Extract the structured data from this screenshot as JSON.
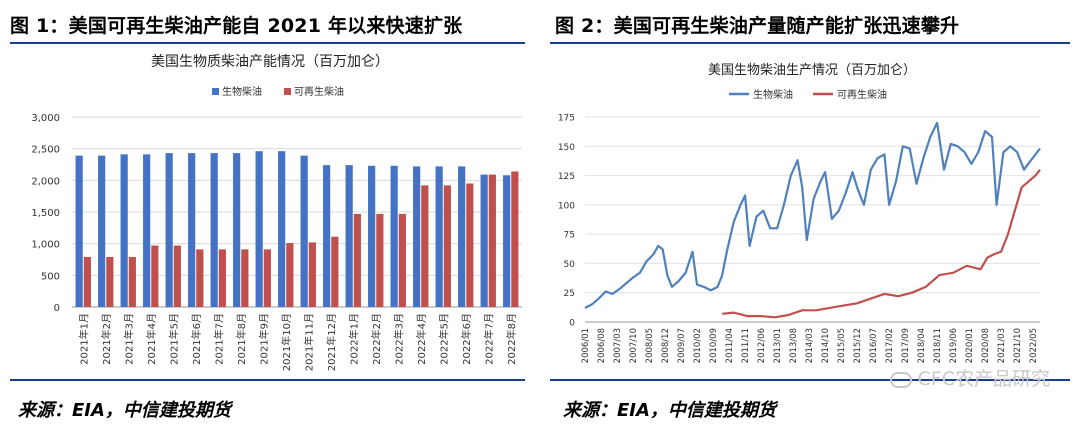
{
  "left": {
    "fig_title": "图 1：美国可再生柴油产能自 2021 年以来快速扩张",
    "source": "来源：EIA，中信建投期货",
    "chart_data": {
      "type": "bar",
      "title": "美国生物质柴油产能情况（百万加仑）",
      "categories": [
        "2021年1月",
        "2021年2月",
        "2021年3月",
        "2021年4月",
        "2021年5月",
        "2021年6月",
        "2021年7月",
        "2021年8月",
        "2021年9月",
        "2021年10月",
        "2021年11月",
        "2021年12月",
        "2022年1月",
        "2022年2月",
        "2022年3月",
        "2022年4月",
        "2022年5月",
        "2022年6月",
        "2022年7月",
        "2022年8月"
      ],
      "series": [
        {
          "name": "生物柴油",
          "color": "#4472c4",
          "values": [
            2390,
            2390,
            2410,
            2410,
            2430,
            2430,
            2430,
            2430,
            2460,
            2460,
            2390,
            2240,
            2240,
            2230,
            2230,
            2220,
            2220,
            2220,
            2090,
            2080
          ]
        },
        {
          "name": "可再生柴油",
          "color": "#c0504d",
          "values": [
            790,
            790,
            790,
            970,
            970,
            910,
            910,
            910,
            910,
            1010,
            1020,
            1110,
            1470,
            1470,
            1470,
            1920,
            1920,
            1950,
            2090,
            2140
          ]
        }
      ],
      "ylim": [
        0,
        3000
      ],
      "yticks": [
        "0",
        "500",
        "1,000",
        "1,500",
        "2,000",
        "2,500",
        "3,000"
      ],
      "ytick_values": [
        0,
        500,
        1000,
        1500,
        2000,
        2500,
        3000
      ],
      "grid": true,
      "legend": "top"
    }
  },
  "right": {
    "fig_title": "图 2：美国可再生柴油产量随产能扩张迅速攀升",
    "source": "来源：EIA，中信建投期货",
    "watermark": "CFC农产品研究",
    "chart_data": {
      "type": "line",
      "title": "美国生物柴油生产情况（百万加仑）",
      "ylim": [
        0,
        175
      ],
      "yticks": [
        "0",
        "25",
        "50",
        "75",
        "100",
        "125",
        "150",
        "175"
      ],
      "ytick_values": [
        0,
        25,
        50,
        75,
        100,
        125,
        150,
        175
      ],
      "xticks": [
        "2006/01",
        "2006/08",
        "2007/03",
        "2007/10",
        "2008/05",
        "2008/12",
        "2009/07",
        "2010/02",
        "2010/09",
        "2011/04",
        "2011/11",
        "2012/06",
        "2013/01",
        "2013/08",
        "2014/03",
        "2014/10",
        "2015/05",
        "2015/12",
        "2016/07",
        "2017/02",
        "2017/09",
        "2018/04",
        "2018/11",
        "2019/06",
        "2020/01",
        "2020/08",
        "2021/03",
        "2021/10",
        "2022/05"
      ],
      "x_start": "2006/01",
      "x_end": "2022/08",
      "grid": true,
      "legend": "top",
      "series": [
        {
          "name": "生物柴油",
          "color": "#4f81bd",
          "points": [
            [
              "2006/01",
              12
            ],
            [
              "2006/04",
              15
            ],
            [
              "2006/07",
              20
            ],
            [
              "2006/10",
              26
            ],
            [
              "2007/01",
              24
            ],
            [
              "2007/04",
              28
            ],
            [
              "2007/07",
              33
            ],
            [
              "2007/10",
              38
            ],
            [
              "2008/01",
              42
            ],
            [
              "2008/04",
              52
            ],
            [
              "2008/07",
              58
            ],
            [
              "2008/09",
              65
            ],
            [
              "2008/11",
              62
            ],
            [
              "2009/01",
              40
            ],
            [
              "2009/03",
              30
            ],
            [
              "2009/06",
              35
            ],
            [
              "2009/09",
              42
            ],
            [
              "2009/12",
              60
            ],
            [
              "2010/02",
              32
            ],
            [
              "2010/05",
              30
            ],
            [
              "2010/08",
              27
            ],
            [
              "2010/11",
              30
            ],
            [
              "2011/01",
              40
            ],
            [
              "2011/03",
              60
            ],
            [
              "2011/06",
              85
            ],
            [
              "2011/09",
              100
            ],
            [
              "2011/11",
              108
            ],
            [
              "2012/01",
              65
            ],
            [
              "2012/04",
              90
            ],
            [
              "2012/07",
              95
            ],
            [
              "2012/10",
              80
            ],
            [
              "2013/01",
              80
            ],
            [
              "2013/04",
              100
            ],
            [
              "2013/07",
              125
            ],
            [
              "2013/10",
              138
            ],
            [
              "2013/12",
              115
            ],
            [
              "2014/02",
              70
            ],
            [
              "2014/05",
              105
            ],
            [
              "2014/08",
              120
            ],
            [
              "2014/10",
              128
            ],
            [
              "2015/01",
              88
            ],
            [
              "2015/04",
              95
            ],
            [
              "2015/07",
              110
            ],
            [
              "2015/10",
              128
            ],
            [
              "2015/12",
              115
            ],
            [
              "2016/03",
              100
            ],
            [
              "2016/06",
              130
            ],
            [
              "2016/09",
              140
            ],
            [
              "2016/12",
              143
            ],
            [
              "2017/02",
              100
            ],
            [
              "2017/05",
              120
            ],
            [
              "2017/08",
              150
            ],
            [
              "2017/11",
              148
            ],
            [
              "2018/02",
              118
            ],
            [
              "2018/05",
              140
            ],
            [
              "2018/08",
              158
            ],
            [
              "2018/11",
              170
            ],
            [
              "2019/02",
              130
            ],
            [
              "2019/05",
              152
            ],
            [
              "2019/08",
              150
            ],
            [
              "2019/11",
              145
            ],
            [
              "2020/02",
              135
            ],
            [
              "2020/05",
              145
            ],
            [
              "2020/08",
              163
            ],
            [
              "2020/11",
              158
            ],
            [
              "2021/01",
              100
            ],
            [
              "2021/04",
              145
            ],
            [
              "2021/07",
              150
            ],
            [
              "2021/10",
              145
            ],
            [
              "2022/01",
              130
            ],
            [
              "2022/04",
              138
            ],
            [
              "2022/08",
              148
            ]
          ]
        },
        {
          "name": "可再生柴油",
          "color": "#c0504d",
          "points": [
            [
              "2011/01",
              7
            ],
            [
              "2011/06",
              8
            ],
            [
              "2011/12",
              5
            ],
            [
              "2012/06",
              5
            ],
            [
              "2012/12",
              4
            ],
            [
              "2013/06",
              6
            ],
            [
              "2013/12",
              10
            ],
            [
              "2014/06",
              10
            ],
            [
              "2014/12",
              12
            ],
            [
              "2015/06",
              14
            ],
            [
              "2015/12",
              16
            ],
            [
              "2016/06",
              20
            ],
            [
              "2016/12",
              24
            ],
            [
              "2017/06",
              22
            ],
            [
              "2017/12",
              25
            ],
            [
              "2018/06",
              30
            ],
            [
              "2018/12",
              40
            ],
            [
              "2019/06",
              42
            ],
            [
              "2019/12",
              48
            ],
            [
              "2020/06",
              45
            ],
            [
              "2020/09",
              55
            ],
            [
              "2020/12",
              58
            ],
            [
              "2021/03",
              60
            ],
            [
              "2021/06",
              75
            ],
            [
              "2021/09",
              95
            ],
            [
              "2021/12",
              115
            ],
            [
              "2022/03",
              120
            ],
            [
              "2022/06",
              125
            ],
            [
              "2022/08",
              130
            ]
          ]
        }
      ]
    }
  }
}
